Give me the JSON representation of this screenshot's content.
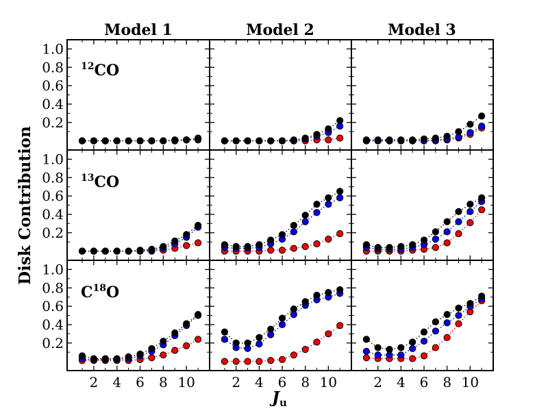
{
  "chart_data": {
    "type": "scatter",
    "layout": "3x3 grid",
    "columns": [
      "Model 1",
      "Model 2",
      "Model 3"
    ],
    "rows": [
      {
        "sup": "12",
        "pre": "",
        "post": "CO"
      },
      {
        "sup": "13",
        "pre": "",
        "post": "CO"
      },
      {
        "sup": "18",
        "pre": "C",
        "post": "O"
      }
    ],
    "ylabel": "Disk Contribution",
    "xlabel_main": "J",
    "xlabel_sub": "u",
    "x": [
      1,
      2,
      3,
      4,
      5,
      6,
      7,
      8,
      9,
      10,
      11
    ],
    "xlim": [
      -0.3,
      12
    ],
    "ylim": [
      -0.1,
      1.1
    ],
    "xticks": [
      2,
      4,
      6,
      8,
      10
    ],
    "xtick_labels": [
      "2",
      "4",
      "6",
      "8",
      "10"
    ],
    "yticks": [
      0.2,
      0.4,
      0.6,
      0.8,
      1.0
    ],
    "ytick_labels": [
      "0.2",
      "0.4",
      "0.6",
      "0.8",
      "1.0"
    ],
    "series_colors": {
      "black": "#000000",
      "blue": "#0000ee",
      "red": "#ee0000"
    },
    "panels": [
      [
        {
          "black": [
            0.0,
            0.0,
            0.0,
            0.0,
            0.0,
            0.0,
            0.0,
            0.0,
            0.01,
            0.01,
            0.03
          ],
          "blue": [
            0.0,
            0.0,
            0.0,
            0.0,
            0.0,
            0.0,
            0.0,
            0.0,
            0.0,
            0.01,
            0.02
          ],
          "red": [
            0.0,
            0.0,
            0.0,
            0.0,
            0.0,
            0.0,
            0.0,
            0.0,
            0.0,
            0.01,
            0.01
          ]
        },
        {
          "black": [
            0.0,
            0.0,
            0.0,
            0.0,
            0.0,
            0.0,
            0.01,
            0.03,
            0.07,
            0.13,
            0.22
          ],
          "blue": [
            0.0,
            0.0,
            0.0,
            0.0,
            0.0,
            0.0,
            0.0,
            0.02,
            0.05,
            0.09,
            0.16
          ],
          "red": [
            0.0,
            0.0,
            0.0,
            0.0,
            0.0,
            0.0,
            0.0,
            0.0,
            0.01,
            0.01,
            0.03
          ]
        },
        {
          "black": [
            0.01,
            0.01,
            0.01,
            0.01,
            0.01,
            0.02,
            0.03,
            0.05,
            0.1,
            0.18,
            0.27
          ],
          "blue": [
            0.0,
            0.0,
            0.0,
            0.0,
            0.0,
            0.0,
            0.01,
            0.02,
            0.04,
            0.09,
            0.16
          ],
          "red": [
            0.0,
            0.0,
            0.0,
            0.0,
            0.0,
            0.0,
            0.0,
            0.01,
            0.03,
            0.07,
            0.14
          ]
        }
      ],
      [
        {
          "black": [
            0.0,
            0.0,
            0.0,
            0.0,
            0.0,
            0.01,
            0.02,
            0.05,
            0.11,
            0.18,
            0.28
          ],
          "blue": [
            0.0,
            0.0,
            0.0,
            0.0,
            0.0,
            0.0,
            0.01,
            0.03,
            0.08,
            0.15,
            0.26
          ],
          "red": [
            0.0,
            0.0,
            0.0,
            0.0,
            0.0,
            0.0,
            0.0,
            0.01,
            0.03,
            0.06,
            0.09
          ]
        },
        {
          "black": [
            0.07,
            0.05,
            0.05,
            0.07,
            0.12,
            0.18,
            0.28,
            0.39,
            0.51,
            0.58,
            0.65
          ],
          "blue": [
            0.04,
            0.03,
            0.03,
            0.04,
            0.08,
            0.13,
            0.21,
            0.32,
            0.42,
            0.51,
            0.58
          ],
          "red": [
            0.0,
            0.0,
            0.0,
            0.0,
            0.01,
            0.01,
            0.03,
            0.05,
            0.08,
            0.13,
            0.19
          ]
        },
        {
          "black": [
            0.07,
            0.04,
            0.04,
            0.05,
            0.07,
            0.12,
            0.21,
            0.32,
            0.43,
            0.51,
            0.58
          ],
          "blue": [
            0.04,
            0.02,
            0.02,
            0.02,
            0.04,
            0.07,
            0.13,
            0.21,
            0.32,
            0.43,
            0.54
          ],
          "red": [
            0.0,
            0.0,
            0.0,
            0.0,
            0.01,
            0.02,
            0.04,
            0.09,
            0.19,
            0.31,
            0.45
          ]
        }
      ],
      [
        {
          "black": [
            0.06,
            0.03,
            0.03,
            0.03,
            0.05,
            0.08,
            0.14,
            0.22,
            0.31,
            0.41,
            0.51
          ],
          "blue": [
            0.03,
            0.02,
            0.02,
            0.02,
            0.03,
            0.06,
            0.11,
            0.18,
            0.28,
            0.39,
            0.5
          ],
          "red": [
            0.01,
            0.01,
            0.01,
            0.01,
            0.01,
            0.02,
            0.04,
            0.07,
            0.12,
            0.17,
            0.24
          ]
        },
        {
          "black": [
            0.32,
            0.2,
            0.2,
            0.26,
            0.35,
            0.47,
            0.57,
            0.65,
            0.72,
            0.75,
            0.78
          ],
          "blue": [
            0.24,
            0.15,
            0.14,
            0.19,
            0.29,
            0.4,
            0.51,
            0.61,
            0.67,
            0.7,
            0.74
          ],
          "red": [
            0.0,
            0.0,
            0.0,
            0.0,
            0.01,
            0.02,
            0.07,
            0.13,
            0.21,
            0.3,
            0.39
          ]
        },
        {
          "black": [
            0.24,
            0.15,
            0.13,
            0.15,
            0.21,
            0.32,
            0.43,
            0.51,
            0.58,
            0.63,
            0.71
          ],
          "blue": [
            0.11,
            0.07,
            0.07,
            0.07,
            0.14,
            0.22,
            0.33,
            0.42,
            0.5,
            0.6,
            0.68
          ],
          "red": [
            0.04,
            0.03,
            0.03,
            0.03,
            0.03,
            0.06,
            0.15,
            0.26,
            0.41,
            0.54,
            0.66
          ]
        }
      ]
    ]
  }
}
